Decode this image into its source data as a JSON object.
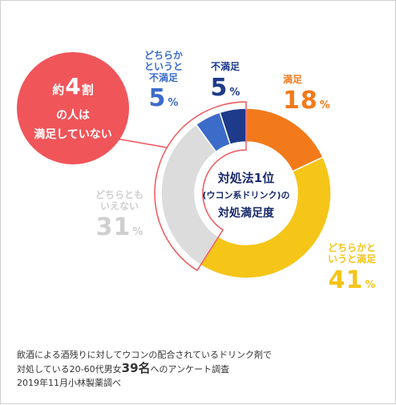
{
  "colors": {
    "dissatisfied": "#1e3a8a",
    "somewhat_dissatisfied": "#3b6cc9",
    "satisfied": "#f27a1a",
    "somewhat_satisfied": "#f5c518",
    "neutral": "#dcdcdc",
    "callout": "#f0555a",
    "neutral_text": "#cfcfcf"
  },
  "chart_data": {
    "type": "pie",
    "variant": "donut",
    "center_label": {
      "line1": "対処法1位",
      "line2": "(ウコン系ドリンク)の",
      "line3": "対処満足度"
    },
    "slices": [
      {
        "key": "satisfied",
        "label": "満足",
        "value": 18,
        "unit": "%"
      },
      {
        "key": "somewhat_satisfied",
        "label": "どちらかと\nいうと満足",
        "value": 41,
        "unit": "%"
      },
      {
        "key": "neutral",
        "label": "どちらとも\nいえない",
        "value": 31,
        "unit": "%"
      },
      {
        "key": "somewhat_dissatisfied",
        "label": "どちらか\nというと\n不満足",
        "value": 5,
        "unit": "%"
      },
      {
        "key": "dissatisfied",
        "label": "不満足",
        "value": 5,
        "unit": "%"
      }
    ]
  },
  "callout": {
    "line1_pre": "約",
    "line1_num": "4",
    "line1_post": "割",
    "line2": "の人は",
    "line3": "満足していない"
  },
  "footnote": {
    "line1": "飲酒による酒残りに対してウコンの配合されているドリンク剤で",
    "line2_pre": "対処している20-60代男女",
    "line2_big": "39名",
    "line2_post": "へのアンケート調査",
    "line3": "2019年11月小林製薬調べ"
  }
}
